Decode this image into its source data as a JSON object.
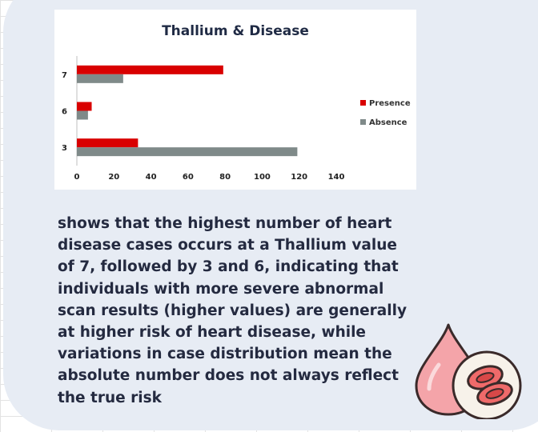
{
  "caption": " shows that the highest number of heart disease cases occurs at a Thallium value of 7, followed by 3 and 6, indicating that individuals with more severe abnormal scan results (higher values) are generally at higher risk of heart disease, while variations in case distribution mean the absolute number does not always reflect the true risk",
  "icons": {
    "decoration": "blood-drop-with-blood-cells-icon"
  },
  "colors": {
    "card": "#e7ecf4",
    "presence": "#d90000",
    "absence": "#7f8a89",
    "title": "#1f2a44"
  },
  "chart_data": {
    "type": "bar",
    "orientation": "horizontal",
    "title": "Thallium & Disease",
    "xlabel": "",
    "ylabel": "",
    "categories": [
      "3",
      "6",
      "7"
    ],
    "series": [
      {
        "name": "Presence",
        "values": [
          33,
          8,
          79
        ]
      },
      {
        "name": "Absence",
        "values": [
          119,
          6,
          25
        ]
      }
    ],
    "xlim": [
      0,
      140
    ],
    "xticks": [
      "0",
      "20",
      "40",
      "60",
      "80",
      "100",
      "120",
      "140"
    ],
    "legend": "right",
    "grid": false
  }
}
